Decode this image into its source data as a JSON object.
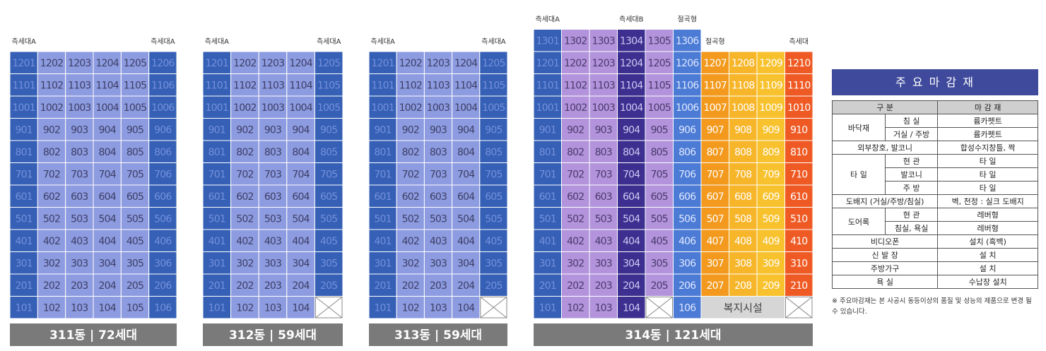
{
  "buildings": [
    {
      "name": "311동 | 72세대",
      "labels": [
        {
          "text": "측세대A",
          "column": 0
        },
        {
          "text": "측세대A",
          "column": 5
        }
      ],
      "column_colors": [
        "#3560b5",
        "#8d9be0",
        "#8d9be0",
        "#8d9be0",
        "#8d9be0",
        "#3560b5"
      ],
      "text_colors": [
        "#7590dc",
        "#3c3f66",
        "#3c3f66",
        "#3c3f66",
        "#3c3f66",
        "#7590dc"
      ],
      "floors": [
        [
          "1201",
          "1202",
          "1203",
          "1204",
          "1205",
          "1206"
        ],
        [
          "1101",
          "1102",
          "1103",
          "1104",
          "1105",
          "1106"
        ],
        [
          "1001",
          "1002",
          "1003",
          "1004",
          "1005",
          "1006"
        ],
        [
          "901",
          "902",
          "903",
          "904",
          "905",
          "906"
        ],
        [
          "801",
          "802",
          "803",
          "804",
          "805",
          "806"
        ],
        [
          "701",
          "702",
          "703",
          "704",
          "705",
          "706"
        ],
        [
          "601",
          "602",
          "603",
          "604",
          "605",
          "606"
        ],
        [
          "501",
          "502",
          "503",
          "504",
          "505",
          "506"
        ],
        [
          "401",
          "402",
          "403",
          "404",
          "405",
          "406"
        ],
        [
          "301",
          "302",
          "303",
          "304",
          "305",
          "306"
        ],
        [
          "201",
          "202",
          "203",
          "204",
          "205",
          "206"
        ],
        [
          "101",
          "102",
          "103",
          "104",
          "105",
          "106"
        ]
      ]
    },
    {
      "name": "312동 | 59세대",
      "labels": [
        {
          "text": "측세대A",
          "column": 0
        },
        {
          "text": "측세대A",
          "column": 4
        }
      ],
      "column_colors": [
        "#3560b5",
        "#8d9be0",
        "#8d9be0",
        "#8d9be0",
        "#3560b5"
      ],
      "text_colors": [
        "#7590dc",
        "#3c3f66",
        "#3c3f66",
        "#3c3f66",
        "#7590dc"
      ],
      "floors": [
        [
          "1201",
          "1202",
          "1203",
          "1204",
          "1205"
        ],
        [
          "1101",
          "1102",
          "1103",
          "1104",
          "1105"
        ],
        [
          "1001",
          "1002",
          "1003",
          "1004",
          "1005"
        ],
        [
          "901",
          "902",
          "903",
          "904",
          "905"
        ],
        [
          "801",
          "802",
          "803",
          "804",
          "805"
        ],
        [
          "701",
          "702",
          "703",
          "704",
          "705"
        ],
        [
          "601",
          "602",
          "603",
          "604",
          "605"
        ],
        [
          "501",
          "502",
          "503",
          "504",
          "505"
        ],
        [
          "401",
          "402",
          "403",
          "404",
          "405"
        ],
        [
          "301",
          "302",
          "303",
          "304",
          "305"
        ],
        [
          "201",
          "202",
          "203",
          "204",
          "205"
        ],
        [
          "101",
          "102",
          "103",
          "104",
          null
        ]
      ]
    },
    {
      "name": "313동 | 59세대",
      "labels": [
        {
          "text": "측세대A",
          "column": 0
        },
        {
          "text": "측세대A",
          "column": 4
        }
      ],
      "column_colors": [
        "#3560b5",
        "#8d9be0",
        "#8d9be0",
        "#8d9be0",
        "#3560b5"
      ],
      "text_colors": [
        "#7590dc",
        "#3c3f66",
        "#3c3f66",
        "#3c3f66",
        "#7590dc"
      ],
      "floors": [
        [
          "1201",
          "1202",
          "1203",
          "1204",
          "1205"
        ],
        [
          "1101",
          "1102",
          "1103",
          "1104",
          "1105"
        ],
        [
          "1001",
          "1002",
          "1003",
          "1004",
          "1005"
        ],
        [
          "901",
          "902",
          "903",
          "904",
          "905"
        ],
        [
          "801",
          "802",
          "803",
          "804",
          "805"
        ],
        [
          "701",
          "702",
          "703",
          "704",
          "705"
        ],
        [
          "601",
          "602",
          "603",
          "604",
          "605"
        ],
        [
          "501",
          "502",
          "503",
          "504",
          "505"
        ],
        [
          "401",
          "402",
          "403",
          "404",
          "405"
        ],
        [
          "301",
          "302",
          "303",
          "304",
          "305"
        ],
        [
          "201",
          "202",
          "203",
          "204",
          "205"
        ],
        [
          "101",
          "102",
          "103",
          "104",
          null
        ]
      ]
    },
    {
      "name": "314동 | 121세대",
      "labels": [
        {
          "text": "측세대A",
          "column": 0
        },
        {
          "text": "측세대B",
          "column": 3
        },
        {
          "text": "절곡형",
          "column": 5
        },
        {
          "text": "절곡형",
          "column": 6
        },
        {
          "text": "측세대",
          "column": 9
        }
      ],
      "column_colors": [
        "#3560b5",
        "#b293dc",
        "#b293dc",
        "#3d2f8f",
        "#b293dc",
        "#4b7bd4",
        "#f39a1e",
        "#f7b52a",
        "#f8c22e",
        "#ef5a24"
      ],
      "text_colors": [
        "#7590dc",
        "#4a3a6a",
        "#4a3a6a",
        "#cfc8f2",
        "#4a3a6a",
        "#dfe7ff",
        "#ffffff",
        "#ffffff",
        "#ffffff",
        "#ffffff"
      ],
      "floors": [
        [
          "1301",
          "1302",
          "1303",
          "1304",
          "1305",
          "1306"
        ],
        [
          "1201",
          "1202",
          "1203",
          "1204",
          "1205",
          "1206",
          "1207",
          "1208",
          "1209",
          "1210"
        ],
        [
          "1101",
          "1102",
          "1103",
          "1104",
          "1105",
          "1106",
          "1107",
          "1108",
          "1109",
          "1110"
        ],
        [
          "1001",
          "1002",
          "1003",
          "1004",
          "1005",
          "1006",
          "1007",
          "1008",
          "1009",
          "1010"
        ],
        [
          "901",
          "902",
          "903",
          "904",
          "905",
          "906",
          "907",
          "908",
          "909",
          "910"
        ],
        [
          "801",
          "802",
          "803",
          "804",
          "805",
          "806",
          "807",
          "808",
          "809",
          "810"
        ],
        [
          "701",
          "702",
          "703",
          "704",
          "705",
          "706",
          "707",
          "708",
          "709",
          "710"
        ],
        [
          "601",
          "602",
          "603",
          "604",
          "605",
          "606",
          "607",
          "608",
          "609",
          "610"
        ],
        [
          "501",
          "502",
          "503",
          "504",
          "505",
          "506",
          "507",
          "508",
          "509",
          "510"
        ],
        [
          "401",
          "402",
          "403",
          "404",
          "405",
          "406",
          "407",
          "408",
          "409",
          "410"
        ],
        [
          "301",
          "302",
          "303",
          "304",
          "305",
          "306",
          "307",
          "308",
          "309",
          "310"
        ],
        [
          "201",
          "202",
          "203",
          "204",
          "205",
          "206",
          "207",
          "208",
          "209",
          "210"
        ],
        [
          "101",
          "102",
          "103",
          "104",
          null,
          "106",
          "복지시설",
          null
        ]
      ]
    }
  ],
  "finishes": {
    "title": "주 요 마 감 재",
    "headers": [
      "구 분",
      "마 감 재"
    ],
    "rows": [
      {
        "label": "바닥재",
        "items": [
          {
            "label": "침 실",
            "value": "륨카펫트"
          },
          {
            "label": "거실 / 주방",
            "value": "륨카펫트"
          }
        ]
      },
      {
        "label": "외부창호, 발코니",
        "value": "합성수지창틀, 짝"
      },
      {
        "label": "타 일",
        "items": [
          {
            "label": "현 관",
            "value": "타 일"
          },
          {
            "label": "발코니",
            "value": "타 일"
          },
          {
            "label": "주 방",
            "value": "타 일"
          }
        ]
      },
      {
        "label": "도배지 (거실/주방/침실)",
        "value": "벽, 천정 : 실크 도배지"
      },
      {
        "label": "도어록",
        "items": [
          {
            "label": "현 관",
            "value": "레버형"
          },
          {
            "label": "침실, 욕실",
            "value": "레버형"
          }
        ]
      },
      {
        "label": "비디오폰",
        "value": "설치 (흑백)"
      },
      {
        "label": "신 발 장",
        "value": "설 치"
      },
      {
        "label": "주방가구",
        "value": "설 치"
      },
      {
        "label": "욕 실",
        "value": "수납장 설치"
      }
    ],
    "note": "※ 주요마감재는 본 사공시 동등이상의 품질 및 성능의 제품으로 변경 될 수 있습니다."
  }
}
